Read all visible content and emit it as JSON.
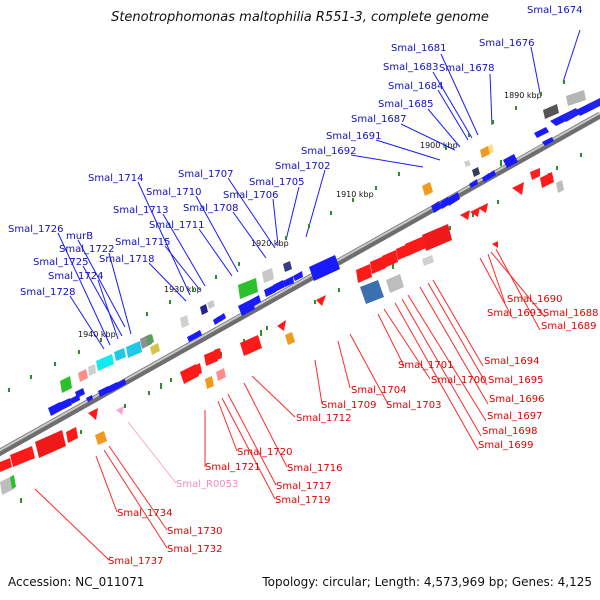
{
  "title": "Stenotrophomonas maltophilia R551-3, complete genome",
  "accession": "Accession: NC_011071",
  "topology": "Topology: circular; Length: 4,573,969 bp; Genes: 4,125",
  "colors": {
    "plus_strand_label": "#1010c0",
    "minus_strand_label": "#e00000",
    "rna_label": "#f08cc0",
    "backbone": "#777777"
  },
  "kbp_marks": [
    "1890 kbp",
    "1900 kbp",
    "1910 kbp",
    "1920 kbp",
    "1930 kbp",
    "1940 kbp"
  ],
  "plus_labels": [
    "Smal_1674",
    "Smal_1676",
    "Smal_1678",
    "Smal_1681",
    "Smal_1683",
    "Smal_1684",
    "Smal_1685",
    "Smal_1687",
    "Smal_1691",
    "Smal_1692",
    "Smal_1702",
    "Smal_1705",
    "Smal_1706",
    "Smal_1707",
    "Smal_1708",
    "Smal_1710",
    "Smal_1711",
    "Smal_1713",
    "Smal_1714",
    "Smal_1715",
    "Smal_1718",
    "murB",
    "Smal_1722",
    "Smal_1724",
    "Smal_1725",
    "Smal_1726",
    "Smal_1728"
  ],
  "minus_labels": [
    "Smal_1688",
    "Smal_1689",
    "Smal_1690",
    "Smal_1693",
    "Smal_1694",
    "Smal_1695",
    "Smal_1696",
    "Smal_1697",
    "Smal_1698",
    "Smal_1699",
    "Smal_1700",
    "Smal_1701",
    "Smal_1703",
    "Smal_1704",
    "Smal_1709",
    "Smal_1712",
    "Smal_1716",
    "Smal_1717",
    "Smal_1719",
    "Smal_1720",
    "Smal_1721",
    "Smal_1730",
    "Smal_1732",
    "Smal_1734",
    "Smal_1737"
  ],
  "rna_labels": [
    "Smal_R0053"
  ]
}
